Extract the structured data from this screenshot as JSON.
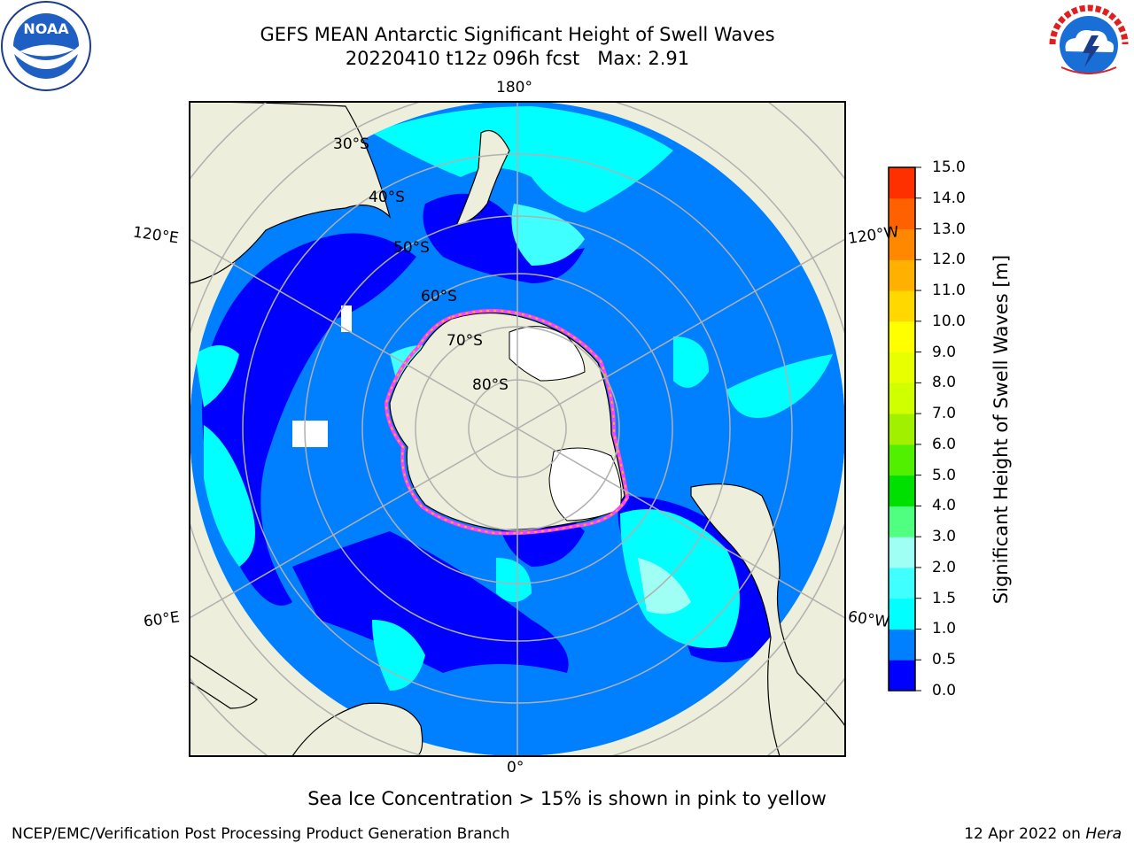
{
  "header": {
    "title": "GEFS MEAN Antarctic Significant Height of Swell Waves",
    "subtitle": "20220410 t12z 096h fcst   Max: 2.91"
  },
  "logos": {
    "left": "NOAA",
    "left_ring_text": "NATIONAL OCEANIC AND ATMOSPHERIC ADMINISTRATION · U.S. DEPARTMENT OF COMMERCE",
    "right_ring_text": "NATIONAL WEATHER SERVICE"
  },
  "map": {
    "longitude_labels": {
      "top": "180°",
      "bottom": "0°",
      "left_upper": "120°E",
      "left_lower": "60°E",
      "right_upper": "120°W",
      "right_lower": "60°W"
    },
    "latitude_labels": [
      "30°S",
      "40°S",
      "50°S",
      "60°S",
      "70°S",
      "80°S"
    ],
    "colors": {
      "land": "#eeeedc",
      "ice": "#ffffff",
      "ocean_low": "#0000ff",
      "ocean_mid": "#007fff",
      "ocean_high": "#00ffff",
      "ocean_higher": "#9ffff5",
      "grid": "#b0b0b0"
    }
  },
  "colorbar": {
    "label": "Significant Height of Swell Waves [m]",
    "ticks": [
      "0.0",
      "0.5",
      "1.0",
      "1.5",
      "2.0",
      "3.0",
      "4.0",
      "5.0",
      "6.0",
      "7.0",
      "8.0",
      "9.0",
      "10.0",
      "11.0",
      "12.0",
      "13.0",
      "14.0",
      "15.0"
    ],
    "colors": [
      "#0000ff",
      "#007fff",
      "#00ffff",
      "#40ffff",
      "#9ffff5",
      "#50ff80",
      "#00e000",
      "#50f000",
      "#a0f000",
      "#d0ff00",
      "#e8ff00",
      "#ffff00",
      "#ffd800",
      "#ffb000",
      "#ff8800",
      "#ff6000",
      "#ff3000",
      "#ff0000"
    ]
  },
  "footer": {
    "note": "Sea Ice Concentration > 15% is shown in pink to yellow",
    "credit": "NCEP/EMC/Verification Post Processing Product Generation Branch",
    "date": "12 Apr 2022 on ",
    "host": "Hera"
  }
}
